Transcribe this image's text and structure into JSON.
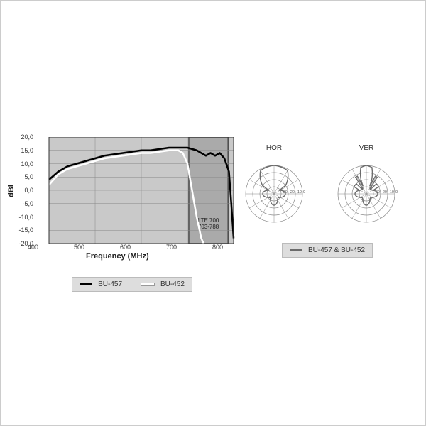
{
  "gain_chart": {
    "type": "line",
    "xlabel": "Frequency (MHz)",
    "ylabel": "dBi",
    "xlim": [
      400,
      800
    ],
    "ylim": [
      -20,
      20
    ],
    "xtick_step": 100,
    "ytick_step": 5,
    "xticks": [
      "400",
      "500",
      "600",
      "700",
      "800"
    ],
    "yticks": [
      "20,0",
      "15,0",
      "10,0",
      "5,0",
      "0,0",
      "-5,0",
      "-10,0",
      "-15,0",
      "-20,0"
    ],
    "plot_bg": "#c9c9c9",
    "grid_color": "#888888",
    "band_label": "LTE 700\n703-788",
    "band_x": [
      703,
      788
    ],
    "band_fill": "#aaaaaa",
    "band_border": "#4a4a4a",
    "series": [
      {
        "name": "BU-457",
        "color": "#000000",
        "width": 2.5,
        "points": [
          [
            400,
            4
          ],
          [
            420,
            7
          ],
          [
            440,
            9
          ],
          [
            460,
            10
          ],
          [
            480,
            11
          ],
          [
            500,
            12
          ],
          [
            520,
            13
          ],
          [
            540,
            13.5
          ],
          [
            560,
            14
          ],
          [
            580,
            14.5
          ],
          [
            600,
            15
          ],
          [
            620,
            15
          ],
          [
            640,
            15.5
          ],
          [
            660,
            16
          ],
          [
            680,
            16
          ],
          [
            700,
            16
          ],
          [
            720,
            15
          ],
          [
            740,
            13
          ],
          [
            750,
            14
          ],
          [
            760,
            13
          ],
          [
            770,
            14
          ],
          [
            780,
            12
          ],
          [
            790,
            7
          ],
          [
            795,
            -5
          ],
          [
            800,
            -18
          ]
        ]
      },
      {
        "name": "BU-452",
        "color": "#ffffff",
        "width": 2.5,
        "points": [
          [
            400,
            2
          ],
          [
            420,
            6
          ],
          [
            440,
            8
          ],
          [
            460,
            9
          ],
          [
            480,
            10
          ],
          [
            500,
            11
          ],
          [
            520,
            12
          ],
          [
            540,
            12.5
          ],
          [
            560,
            13
          ],
          [
            580,
            13.5
          ],
          [
            600,
            14
          ],
          [
            620,
            14
          ],
          [
            640,
            14.5
          ],
          [
            660,
            15
          ],
          [
            680,
            15
          ],
          [
            690,
            14
          ],
          [
            700,
            10
          ],
          [
            710,
            0
          ],
          [
            720,
            -10
          ],
          [
            730,
            -18
          ],
          [
            735,
            -20
          ]
        ]
      }
    ],
    "legend": {
      "bg": "#d6d6d6",
      "bu457_swatch": "#000000",
      "bu452_swatch": "#ffffff",
      "bu457_label": "BU-457",
      "bu452_label": "BU-452"
    }
  },
  "polar": {
    "hor": {
      "title": "HOR",
      "ring_ticks": [
        0,
        -10,
        -20,
        -30
      ],
      "ring_color": "#888888",
      "lobe_color": "#6b6b6b",
      "main_lobe_deg": [
        -30,
        30
      ],
      "back_lobe_level": -22,
      "tick_labels": [
        "0",
        "-10",
        "-20",
        "-30"
      ]
    },
    "ver": {
      "title": "VER",
      "ring_ticks": [
        0,
        -10,
        -20,
        -30
      ],
      "ring_color": "#888888",
      "lobe_color": "#6b6b6b",
      "main_lobe_deg": [
        -12,
        12
      ],
      "side_lobes": [
        [
          -35,
          -25,
          -12
        ],
        [
          25,
          35,
          -12
        ],
        [
          -60,
          -45,
          -20
        ],
        [
          45,
          60,
          -20
        ]
      ],
      "tick_labels": [
        "0",
        "-10",
        "-20",
        "-30"
      ]
    },
    "legend_label": "BU-457 & BU-452",
    "legend_swatch": "#6b6b6b"
  },
  "layout": {
    "page_border": "#cccccc",
    "font": "Arial",
    "label_fontsize": 11,
    "tick_fontsize": 9
  }
}
